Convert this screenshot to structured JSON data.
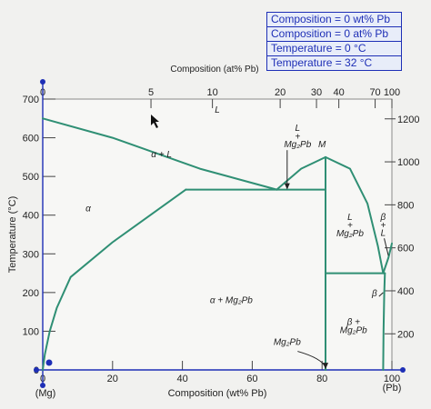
{
  "readout": [
    "Composition = 0 wt% Pb",
    "Composition = 0 at% Pb",
    "Temperature = 0 °C",
    "Temperature = 32 °C"
  ],
  "colors": {
    "phase_line": "#2f8f74",
    "axis_blue": "#1e2fb6",
    "text": "#222222"
  },
  "chart_data": {
    "type": "phase-diagram",
    "ylabel": "Temperature (°C)",
    "xlabel": "Composition (wt% Pb)",
    "top_axis_label": "Composition (at% Pb)",
    "x_left_label": "(Mg)",
    "x_right_label": "(Pb)",
    "xlim": [
      0,
      100
    ],
    "ylim_C": [
      0,
      700
    ],
    "x_ticks": [
      0,
      20,
      40,
      60,
      80,
      100
    ],
    "y_ticks_C": [
      0,
      100,
      200,
      300,
      400,
      500,
      600,
      700
    ],
    "top_ticks_at": [
      0,
      5,
      10,
      20,
      30,
      40,
      70,
      100
    ],
    "top_tick_wtpct": [
      0,
      31,
      48.6,
      68,
      78.4,
      84.8,
      95.2,
      100
    ],
    "y2_ticks_F": [
      200,
      400,
      600,
      800,
      1000,
      1200
    ],
    "curves": {
      "liquidus_alpha": [
        [
          0,
          650
        ],
        [
          20,
          600
        ],
        [
          45,
          520
        ],
        [
          67,
          466
        ]
      ],
      "alpha_solvus": [
        [
          0,
          0
        ],
        [
          0.6,
          40
        ],
        [
          2,
          100
        ],
        [
          4,
          160
        ],
        [
          8,
          240
        ],
        [
          20,
          330
        ],
        [
          41,
          466
        ]
      ],
      "eutectic_1": [
        [
          41,
          466
        ],
        [
          81,
          466
        ]
      ],
      "liquidus_mg2pb_left": [
        [
          67,
          466
        ],
        [
          74,
          520
        ],
        [
          81,
          550
        ]
      ],
      "liquidus_mg2pb_right": [
        [
          81,
          550
        ],
        [
          88,
          520
        ],
        [
          93,
          430
        ],
        [
          96,
          320
        ],
        [
          97.5,
          250
        ]
      ],
      "liquidus_beta": [
        [
          97.5,
          250
        ],
        [
          99,
          290
        ],
        [
          100,
          327
        ]
      ],
      "mg2pb_line": [
        [
          81,
          0
        ],
        [
          81,
          550
        ]
      ],
      "eutectic_2": [
        [
          81,
          250
        ],
        [
          98,
          250
        ]
      ],
      "beta_solvus": [
        [
          97.5,
          0
        ],
        [
          97.6,
          100
        ],
        [
          97.8,
          200
        ],
        [
          98,
          250
        ]
      ]
    },
    "labels": [
      {
        "text": "L",
        "x": 50,
        "y": 665
      },
      {
        "text": "α + L",
        "x": 34,
        "y": 550
      },
      {
        "text": "α",
        "x": 13,
        "y": 410
      },
      {
        "text": "L",
        "x": 73,
        "y": 618
      },
      {
        "text": "+",
        "x": 73,
        "y": 596
      },
      {
        "text": "Mg₂Pb",
        "x": 73,
        "y": 575
      },
      {
        "text": "M",
        "x": 80,
        "y": 575
      },
      {
        "text": "L",
        "x": 88,
        "y": 388
      },
      {
        "text": "+",
        "x": 88,
        "y": 366
      },
      {
        "text": "Mg₂Pb",
        "x": 88,
        "y": 345
      },
      {
        "text": "β",
        "x": 97.5,
        "y": 388
      },
      {
        "text": "+",
        "x": 97.5,
        "y": 367
      },
      {
        "text": "L",
        "x": 97.5,
        "y": 346
      },
      {
        "text": "α + Mg₂Pb",
        "x": 54,
        "y": 173
      },
      {
        "text": "β",
        "x": 95,
        "y": 190
      },
      {
        "text": "β +",
        "x": 89,
        "y": 116
      },
      {
        "text": "Mg₂Pb",
        "x": 89,
        "y": 95
      },
      {
        "text": "Mg₂Pb",
        "x": 70,
        "y": 65
      }
    ]
  }
}
